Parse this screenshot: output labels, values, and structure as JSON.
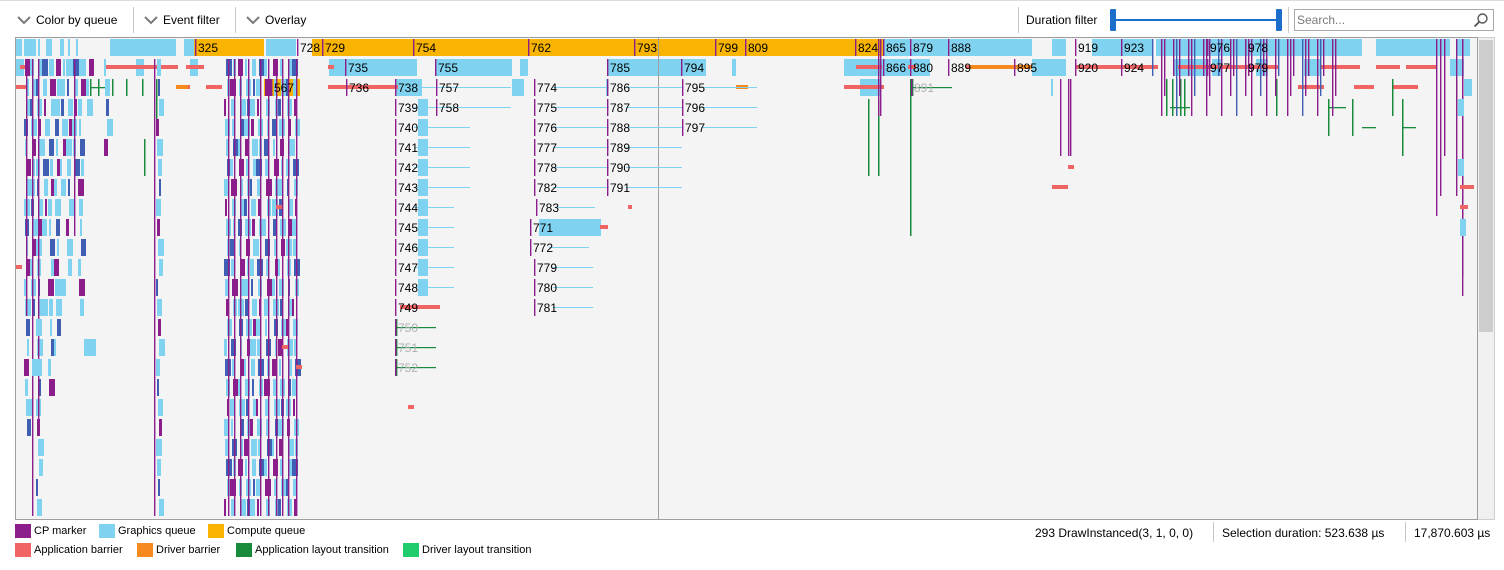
{
  "toolbar": {
    "color_by_queue": "Color by queue",
    "event_filter": "Event filter",
    "overlay": "Overlay",
    "duration_filter": "Duration filter",
    "duration_filter_min": 0,
    "duration_filter_max": 1,
    "search_placeholder": "Search..."
  },
  "colors": {
    "cp_marker": "#8b1e8b",
    "graphics_queue": "#7fd3f0",
    "compute_queue": "#f8b400",
    "application_barrier": "#f06464",
    "driver_barrier": "#f68a1e",
    "application_layout_transition": "#178a3c",
    "driver_layout_transition": "#1fcd6c",
    "dimmed_label": "#b0b0b0"
  },
  "legend": [
    {
      "label": "CP marker",
      "color_key": "cp_marker"
    },
    {
      "label": "Graphics queue",
      "color_key": "graphics_queue"
    },
    {
      "label": "Compute queue",
      "color_key": "compute_queue"
    },
    {
      "label": "Application barrier",
      "color_key": "application_barrier"
    },
    {
      "label": "Driver barrier",
      "color_key": "driver_barrier"
    },
    {
      "label": "Application layout transition",
      "color_key": "application_layout_transition"
    },
    {
      "label": "Driver layout transition",
      "color_key": "driver_layout_transition"
    }
  ],
  "status": {
    "selected_event": "293 DrawInstanced(3, 1, 0, 0)",
    "selection_duration": "Selection duration:  523.638 µs",
    "total_duration": "17,870.603 µs"
  },
  "events": [
    {
      "label": "325",
      "color": "compute_queue",
      "text": "dark"
    },
    {
      "label": "728",
      "color": "compute_queue",
      "text": "dark"
    },
    {
      "label": "729",
      "color": "compute_queue",
      "text": "dark"
    },
    {
      "label": "754",
      "color": "compute_queue",
      "text": "dark"
    },
    {
      "label": "762",
      "color": "compute_queue",
      "text": "dark"
    },
    {
      "label": "793",
      "color": "compute_queue",
      "text": "dark"
    },
    {
      "label": "799",
      "color": "compute_queue",
      "text": "dark"
    },
    {
      "label": "809",
      "color": "compute_queue",
      "text": "dark"
    },
    {
      "label": "824",
      "color": "compute_queue",
      "text": "dark"
    },
    {
      "label": "865",
      "color": "graphics_queue",
      "text": "dark"
    },
    {
      "label": "879",
      "color": "graphics_queue",
      "text": "dark"
    },
    {
      "label": "888",
      "color": "graphics_queue",
      "text": "dark"
    },
    {
      "label": "919",
      "color": "graphics_queue",
      "text": "dark"
    },
    {
      "label": "923",
      "color": "graphics_queue",
      "text": "dark"
    },
    {
      "label": "976",
      "color": "graphics_queue",
      "text": "dark"
    },
    {
      "label": "978",
      "color": "graphics_queue",
      "text": "dark"
    },
    {
      "label": "735",
      "color": "graphics_queue",
      "text": "dark"
    },
    {
      "label": "755",
      "color": "graphics_queue",
      "text": "dark"
    },
    {
      "label": "785",
      "color": "graphics_queue",
      "text": "dark"
    },
    {
      "label": "794",
      "color": "graphics_queue",
      "text": "dark"
    },
    {
      "label": "866",
      "color": "graphics_queue",
      "text": "dark"
    },
    {
      "label": "880",
      "color": "graphics_queue",
      "text": "dark"
    },
    {
      "label": "889",
      "color": "driver_barrier",
      "text": "dark"
    },
    {
      "label": "895",
      "color": "graphics_queue",
      "text": "dark"
    },
    {
      "label": "920",
      "color": "application_barrier",
      "text": "dark"
    },
    {
      "label": "924",
      "color": "application_barrier",
      "text": "dark"
    },
    {
      "label": "977",
      "color": "application_barrier",
      "text": "dark"
    },
    {
      "label": "979",
      "color": "application_barrier",
      "text": "dark"
    },
    {
      "label": "567",
      "color": "compute_queue",
      "text": "dark"
    },
    {
      "label": "736",
      "color": "application_barrier",
      "text": "dark"
    },
    {
      "label": "738",
      "color": "graphics_queue",
      "text": "dark"
    },
    {
      "label": "757",
      "color": "graphics_queue",
      "text": "dark"
    },
    {
      "label": "774",
      "color": "graphics_queue",
      "text": "dark"
    },
    {
      "label": "786",
      "color": "graphics_queue",
      "text": "dark"
    },
    {
      "label": "795",
      "color": "graphics_queue",
      "text": "dark"
    },
    {
      "label": "891",
      "color": "application_layout_transition",
      "text": "dim"
    },
    {
      "label": "739",
      "color": "graphics_queue",
      "text": "dark"
    },
    {
      "label": "758",
      "color": "graphics_queue",
      "text": "dark"
    },
    {
      "label": "775",
      "color": "graphics_queue",
      "text": "dark"
    },
    {
      "label": "787",
      "color": "graphics_queue",
      "text": "dark"
    },
    {
      "label": "796",
      "color": "graphics_queue",
      "text": "dark"
    },
    {
      "label": "740",
      "color": "graphics_queue",
      "text": "dark"
    },
    {
      "label": "776",
      "color": "graphics_queue",
      "text": "dark"
    },
    {
      "label": "788",
      "color": "graphics_queue",
      "text": "dark"
    },
    {
      "label": "797",
      "color": "graphics_queue",
      "text": "dark"
    },
    {
      "label": "741",
      "color": "graphics_queue",
      "text": "dark"
    },
    {
      "label": "777",
      "color": "graphics_queue",
      "text": "dark"
    },
    {
      "label": "789",
      "color": "graphics_queue",
      "text": "dark"
    },
    {
      "label": "742",
      "color": "graphics_queue",
      "text": "dark"
    },
    {
      "label": "778",
      "color": "graphics_queue",
      "text": "dark"
    },
    {
      "label": "790",
      "color": "graphics_queue",
      "text": "dark"
    },
    {
      "label": "743",
      "color": "graphics_queue",
      "text": "dark"
    },
    {
      "label": "782",
      "color": "graphics_queue",
      "text": "dark"
    },
    {
      "label": "791",
      "color": "graphics_queue",
      "text": "dark"
    },
    {
      "label": "744",
      "color": "graphics_queue",
      "text": "dark"
    },
    {
      "label": "783",
      "color": "graphics_queue",
      "text": "dark"
    },
    {
      "label": "745",
      "color": "graphics_queue",
      "text": "dark"
    },
    {
      "label": "771",
      "color": "graphics_queue",
      "text": "dark"
    },
    {
      "label": "746",
      "color": "graphics_queue",
      "text": "dark"
    },
    {
      "label": "772",
      "color": "graphics_queue",
      "text": "dark"
    },
    {
      "label": "747",
      "color": "graphics_queue",
      "text": "dark"
    },
    {
      "label": "779",
      "color": "graphics_queue",
      "text": "dark"
    },
    {
      "label": "748",
      "color": "graphics_queue",
      "text": "dark"
    },
    {
      "label": "780",
      "color": "graphics_queue",
      "text": "dark"
    },
    {
      "label": "749",
      "color": "application_barrier",
      "text": "dark"
    },
    {
      "label": "781",
      "color": "graphics_queue",
      "text": "dark"
    },
    {
      "label": "750",
      "color": "application_layout_transition",
      "text": "dim"
    },
    {
      "label": "751",
      "color": "application_layout_transition",
      "text": "dim"
    },
    {
      "label": "752",
      "color": "application_layout_transition",
      "text": "dim"
    }
  ]
}
